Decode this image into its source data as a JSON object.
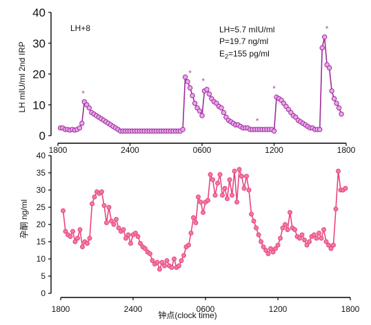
{
  "chart_data": [
    {
      "type": "line",
      "ylabel": "LH mIU/ml 2nd IRP",
      "ylim": [
        0,
        40
      ],
      "yticks": [
        "0",
        "10",
        "20",
        "30",
        "40"
      ],
      "xticks": [
        "1800",
        "2400",
        "0600",
        "1200",
        "1800"
      ],
      "xlim_hours": [
        0,
        24
      ],
      "annotations": {
        "day_label": "LH+8",
        "lh_line": "LH=5.7 mIU/ml",
        "p_line": "P=19.7 ng/ml",
        "e2_prefix": "E",
        "e2_sub": "2",
        "e2_suffix": "=155 pg/ml",
        "pulse_marker": "*"
      },
      "pulse_markers_at_hours": [
        2.1,
        11.0,
        12.1,
        16.6,
        18.0,
        22.4
      ],
      "series": [
        {
          "color": "#9b2a9b",
          "marker_fill": "#e9a6ea",
          "x": [
            0.2,
            0.4,
            0.6,
            0.8,
            1.0,
            1.2,
            1.4,
            1.6,
            1.8,
            2.0,
            2.2,
            2.4,
            2.6,
            2.8,
            3.0,
            3.2,
            3.4,
            3.6,
            3.8,
            4.0,
            4.2,
            4.4,
            4.6,
            4.8,
            5.0,
            5.2,
            5.4,
            5.6,
            5.8,
            6.0,
            6.2,
            6.4,
            6.6,
            6.8,
            7.0,
            7.2,
            7.4,
            7.6,
            7.8,
            8.0,
            8.2,
            8.4,
            8.6,
            8.8,
            9.0,
            9.2,
            9.4,
            9.6,
            9.8,
            10.0,
            10.2,
            10.4,
            10.6,
            10.8,
            11.0,
            11.2,
            11.4,
            11.6,
            11.8,
            12.0,
            12.2,
            12.4,
            12.6,
            12.8,
            13.0,
            13.2,
            13.4,
            13.6,
            13.8,
            14.0,
            14.2,
            14.4,
            14.6,
            14.8,
            15.0,
            15.2,
            15.4,
            15.6,
            15.8,
            16.0,
            16.2,
            16.4,
            16.6,
            16.8,
            17.0,
            17.2,
            17.4,
            17.6,
            17.8,
            18.0,
            18.2,
            18.4,
            18.6,
            18.8,
            19.0,
            19.2,
            19.4,
            19.6,
            19.8,
            20.0,
            20.2,
            20.4,
            20.6,
            20.8,
            21.0,
            21.2,
            21.4,
            21.6,
            21.8,
            22.0,
            22.2,
            22.4,
            22.6,
            22.8,
            23.0,
            23.2,
            23.4,
            23.6
          ],
          "y": [
            2.5,
            2.5,
            2.0,
            2.0,
            1.8,
            2.0,
            1.8,
            2.0,
            2.5,
            4.0,
            11.0,
            10.0,
            9.0,
            7.5,
            7.0,
            6.5,
            6.0,
            5.5,
            5.0,
            4.5,
            4.0,
            3.5,
            3.0,
            2.5,
            2.0,
            1.5,
            1.5,
            1.5,
            1.5,
            1.5,
            1.5,
            1.5,
            1.5,
            1.5,
            1.5,
            1.5,
            1.5,
            1.5,
            1.5,
            1.5,
            1.5,
            1.5,
            1.5,
            1.5,
            1.5,
            1.5,
            1.5,
            1.5,
            1.5,
            1.5,
            1.5,
            2.0,
            19.0,
            17.5,
            15.5,
            13.0,
            10.5,
            9.0,
            8.0,
            6.5,
            14.5,
            15.0,
            13.5,
            12.0,
            11.0,
            10.5,
            9.5,
            9.0,
            7.5,
            6.0,
            5.0,
            4.5,
            4.0,
            3.5,
            3.5,
            3.0,
            2.5,
            2.5,
            2.5,
            2.0,
            2.0,
            2.0,
            2.0,
            2.0,
            2.0,
            2.0,
            2.0,
            2.0,
            2.0,
            1.5,
            12.5,
            12.0,
            11.5,
            10.5,
            9.5,
            8.5,
            7.5,
            6.5,
            6.0,
            5.0,
            4.5,
            4.0,
            3.5,
            3.0,
            2.5,
            2.5,
            2.0,
            2.0,
            2.0,
            28.5,
            32.0,
            23.0,
            22.0,
            14.5,
            12.0,
            10.5,
            9.0,
            7.0
          ]
        }
      ]
    },
    {
      "type": "line",
      "ylabel": "孕酮 ng/ml",
      "xlabel": "钟点(clock time)",
      "ylim": [
        0,
        40
      ],
      "yticks": [
        "0",
        "5",
        "10",
        "15",
        "20",
        "25",
        "30",
        "35",
        "40"
      ],
      "xticks": [
        "1800",
        "2400",
        "0600",
        "1200",
        "1800"
      ],
      "xlim_hours": [
        0,
        24
      ],
      "series": [
        {
          "color": "#e8437e",
          "marker_fill": "#f07aa6",
          "x": [
            0.2,
            0.4,
            0.6,
            0.8,
            1.0,
            1.2,
            1.4,
            1.6,
            1.8,
            2.0,
            2.2,
            2.4,
            2.6,
            2.8,
            3.0,
            3.2,
            3.4,
            3.6,
            3.8,
            4.0,
            4.2,
            4.4,
            4.6,
            4.8,
            5.0,
            5.2,
            5.4,
            5.6,
            5.8,
            6.0,
            6.2,
            6.4,
            6.6,
            6.8,
            7.0,
            7.2,
            7.4,
            7.6,
            7.8,
            8.0,
            8.2,
            8.4,
            8.6,
            8.8,
            9.0,
            9.2,
            9.4,
            9.6,
            9.8,
            10.0,
            10.2,
            10.4,
            10.6,
            10.8,
            11.0,
            11.2,
            11.4,
            11.6,
            11.8,
            12.0,
            12.2,
            12.4,
            12.6,
            12.8,
            13.0,
            13.2,
            13.4,
            13.6,
            13.8,
            14.0,
            14.2,
            14.4,
            14.6,
            14.8,
            15.0,
            15.2,
            15.4,
            15.6,
            15.8,
            16.0,
            16.2,
            16.4,
            16.6,
            16.8,
            17.0,
            17.2,
            17.4,
            17.6,
            17.8,
            18.0,
            18.2,
            18.4,
            18.6,
            18.8,
            19.0,
            19.2,
            19.4,
            19.6,
            19.8,
            20.0,
            20.2,
            20.4,
            20.6,
            20.8,
            21.0,
            21.2,
            21.4,
            21.6,
            21.8,
            22.0,
            22.2,
            22.4,
            22.6,
            22.8,
            23.0,
            23.2,
            23.4,
            23.6
          ],
          "y": [
            24,
            18,
            17,
            16.5,
            18,
            15,
            16,
            18.5,
            13.5,
            15,
            14.5,
            16,
            26,
            28,
            29.5,
            29,
            29.5,
            25.5,
            20.5,
            25,
            21,
            20,
            21.5,
            19,
            18,
            18.5,
            16,
            17,
            14.5,
            17,
            17.5,
            16.5,
            14.5,
            13.5,
            13,
            12,
            11.5,
            9.5,
            8.5,
            9,
            7,
            9,
            8,
            9.5,
            8,
            7.5,
            10,
            7.5,
            8,
            9.5,
            11,
            13.5,
            14,
            17.5,
            22,
            20.5,
            28,
            26.5,
            23.5,
            26.5,
            27,
            34.5,
            33,
            28.5,
            32,
            34.5,
            28.5,
            30.5,
            27.5,
            33,
            28.5,
            35.5,
            26.5,
            36,
            34,
            30.5,
            34,
            30,
            23,
            21,
            19,
            17,
            15,
            13.5,
            12.5,
            11.5,
            13,
            12,
            13,
            14,
            16,
            19,
            20,
            18.5,
            23.5,
            19,
            18.5,
            16.5,
            16,
            17,
            15.5,
            14,
            15,
            16.5,
            17,
            16,
            17.5,
            16,
            18.5,
            15,
            14,
            13,
            14,
            24.5,
            35.5,
            30,
            30,
            30.5
          ]
        }
      ]
    }
  ]
}
